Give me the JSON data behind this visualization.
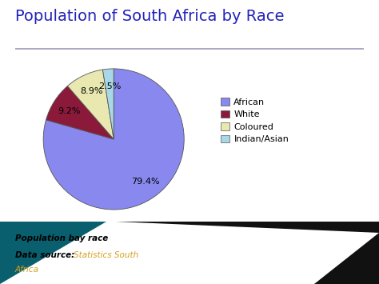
{
  "title": "Population of South Africa by Race",
  "title_color": "#2222bb",
  "title_fontsize": 14,
  "labels": [
    "African",
    "White",
    "Coloured",
    "Indian/Asian"
  ],
  "values": [
    79.5,
    9.2,
    8.9,
    2.5
  ],
  "colors": [
    "#8888ee",
    "#8B1A3A",
    "#e8e8b0",
    "#a8d8e8"
  ],
  "legend_labels": [
    "African",
    "White",
    "Coloured",
    "Indian/Asian"
  ],
  "legend_colors": [
    "#8888ee",
    "#8B1A3A",
    "#e8e8b0",
    "#a8d8e8"
  ],
  "bg_color": "#ffffff",
  "bottom_bg_color": "#1e9aaa",
  "bottom_dark_color": "#111111",
  "footer_bold": "Population bay race",
  "footer_source": "Data source: ",
  "footer_link": "Statistics South\nAfrica",
  "footer_link_color": "#d4a020",
  "separator_color": "#9999bb",
  "autopct_fontsize": 8,
  "legend_fontsize": 8
}
